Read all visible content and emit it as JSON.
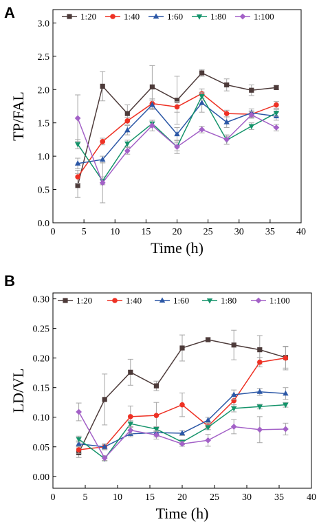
{
  "colors": {
    "1:20": "#4d3b3a",
    "1:40": "#ee3124",
    "1:60": "#2b57a6",
    "1:80": "#14936a",
    "1:100": "#a361c7",
    "errorbar": "#a6a6a6"
  },
  "chart_data": [
    {
      "type": "line",
      "panel_label": "A",
      "xlabel": "Time (h)",
      "ylabel": "TP/FAL",
      "xlim": [
        0,
        40
      ],
      "ylim": [
        0,
        3.2
      ],
      "xticks": [
        0,
        5,
        10,
        15,
        20,
        25,
        30,
        35,
        40
      ],
      "xtick_labels": [
        "0",
        "5",
        "10",
        "15",
        "20",
        "25",
        "30",
        "35",
        "40"
      ],
      "yticks": [
        0,
        0.5,
        1.0,
        1.5,
        2.0,
        2.5,
        3.0
      ],
      "ytick_labels": [
        "0.0",
        "0.5",
        "1.0",
        "1.5",
        "2.0",
        "2.5",
        "3.0"
      ],
      "grid": false,
      "legend": "top, single row",
      "x": [
        4,
        8,
        12,
        16,
        20,
        24,
        28,
        32,
        36
      ],
      "series": [
        {
          "name": "1:20",
          "marker": "square",
          "values": [
            0.56,
            2.05,
            1.64,
            2.04,
            1.84,
            2.25,
            2.07,
            1.99,
            2.03
          ],
          "errors": [
            0.18,
            0.22,
            0.13,
            0.32,
            0.36,
            0.05,
            0.09,
            0.08,
            0.03
          ]
        },
        {
          "name": "1:40",
          "marker": "circle",
          "values": [
            0.69,
            1.22,
            1.53,
            1.79,
            1.74,
            1.94,
            1.64,
            1.63,
            1.77
          ],
          "errors": [
            0.1,
            0.05,
            0.05,
            0.07,
            0.08,
            0.07,
            0.05,
            0.05,
            0.05
          ]
        },
        {
          "name": "1:60",
          "marker": "triangle-up",
          "values": [
            0.89,
            0.95,
            1.39,
            1.77,
            1.33,
            1.8,
            1.51,
            1.65,
            1.6
          ],
          "errors": [
            0.08,
            0.05,
            0.07,
            0.07,
            0.1,
            0.14,
            0.08,
            0.06,
            0.06
          ]
        },
        {
          "name": "1:80",
          "marker": "triangle-down",
          "values": [
            1.18,
            0.63,
            1.19,
            1.49,
            1.14,
            1.9,
            1.24,
            1.45,
            1.65
          ],
          "errors": [
            0.07,
            0.06,
            0.05,
            0.05,
            0.06,
            0.06,
            0.06,
            0.05,
            0.05
          ]
        },
        {
          "name": "1:100",
          "marker": "diamond",
          "values": [
            1.57,
            0.6,
            1.08,
            1.46,
            1.14,
            1.4,
            1.25,
            1.62,
            1.43
          ],
          "errors": [
            0.35,
            0.3,
            0.05,
            0.08,
            0.1,
            0.05,
            0.07,
            0.05,
            0.05
          ]
        }
      ]
    },
    {
      "type": "line",
      "panel_label": "B",
      "xlabel": "Time (h)",
      "ylabel": "LD/VL",
      "xlim": [
        0,
        40
      ],
      "ylim": [
        -0.02,
        0.31
      ],
      "xticks": [
        0,
        5,
        10,
        15,
        20,
        25,
        30,
        35,
        40
      ],
      "xtick_labels": [
        "0",
        "5",
        "10",
        "15",
        "20",
        "25",
        "30",
        "35",
        "40"
      ],
      "yticks": [
        0,
        0.05,
        0.1,
        0.15,
        0.2,
        0.25,
        0.3
      ],
      "ytick_labels": [
        "0.00",
        "0.05",
        "0.10",
        "0.15",
        "0.20",
        "0.25",
        "0.30"
      ],
      "grid": false,
      "legend": "top, single row",
      "x": [
        4,
        8,
        12,
        16,
        20,
        24,
        28,
        32,
        36
      ],
      "series": [
        {
          "name": "1:20",
          "marker": "square",
          "values": [
            0.04,
            0.13,
            0.176,
            0.153,
            0.217,
            0.231,
            0.222,
            0.214,
            0.201
          ],
          "errors": [
            0.008,
            0.043,
            0.022,
            0.008,
            0.022,
            0.003,
            0.025,
            0.024,
            0.018
          ]
        },
        {
          "name": "1:40",
          "marker": "circle",
          "values": [
            0.045,
            0.05,
            0.101,
            0.103,
            0.121,
            0.085,
            0.128,
            0.193,
            0.2
          ],
          "errors": [
            0.006,
            0.005,
            0.018,
            0.022,
            0.02,
            0.006,
            0.01,
            0.008,
            0.02
          ]
        },
        {
          "name": "1:60",
          "marker": "triangle-up",
          "values": [
            0.055,
            0.05,
            0.072,
            0.074,
            0.073,
            0.095,
            0.138,
            0.143,
            0.14
          ],
          "errors": [
            0.005,
            0.004,
            0.005,
            0.007,
            0.004,
            0.005,
            0.008,
            0.006,
            0.01
          ]
        },
        {
          "name": "1:80",
          "marker": "triangle-down",
          "values": [
            0.063,
            0.03,
            0.089,
            0.08,
            0.058,
            0.083,
            0.115,
            0.118,
            0.121
          ],
          "errors": [
            0.005,
            0.004,
            0.005,
            0.004,
            0.004,
            0.004,
            0.006,
            0.004,
            0.004
          ]
        },
        {
          "name": "1:100",
          "marker": "diamond",
          "values": [
            0.109,
            0.031,
            0.078,
            0.07,
            0.055,
            0.061,
            0.084,
            0.079,
            0.08
          ],
          "errors": [
            0.015,
            0.004,
            0.006,
            0.007,
            0.004,
            0.01,
            0.012,
            0.022,
            0.01
          ]
        }
      ]
    }
  ]
}
